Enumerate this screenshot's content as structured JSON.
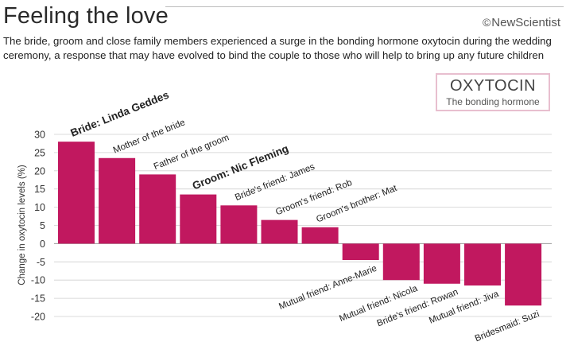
{
  "header": {
    "title": "Feeling the love",
    "brand_symbol": "©",
    "brand_name": "NewScientist",
    "subtitle": "The bride, groom and close family members experienced a surge in the bonding hormone oxytocin during the wedding ceremony, a response that may have evolved to bind the couple to those who will help to bring up any future children"
  },
  "legend": {
    "title": "OXYTOCIN",
    "subtitle": "The bonding hormone",
    "border_color": "#e8bfcf"
  },
  "colors": {
    "bar": "#c1185f",
    "grid": "#cfcfcf"
  },
  "chart_data": {
    "type": "bar",
    "title": "Feeling the love",
    "xlabel": "",
    "ylabel": "Change in oxytocin levels (%)",
    "ylim": [
      -20,
      30
    ],
    "yticks": [
      30,
      25,
      20,
      15,
      10,
      5,
      0,
      -5,
      -10,
      -15,
      -20
    ],
    "ytick_labels": [
      "30",
      "25",
      "20",
      "15",
      "10",
      "5",
      "0",
      "-5",
      "-10",
      "-15",
      "-20"
    ],
    "grid": true,
    "categories": [
      "Bride: Linda Geddes",
      "Mother of the bride",
      "Father of the groom",
      "Groom: Nic Fleming",
      "Bride's friend: James",
      "Groom's friend: Rob",
      "Groom's brother: Mat",
      "Mutual friend: Anne-Marie",
      "Mutual friend: Nicola",
      "Bride's friend: Rowan",
      "Mutual friend: Jiva",
      "Bridesmaid: Suzi"
    ],
    "bold": [
      true,
      false,
      false,
      true,
      false,
      false,
      false,
      false,
      false,
      false,
      false,
      false
    ],
    "values": [
      28,
      23.5,
      19,
      13.5,
      10.5,
      6.5,
      4.5,
      -4.5,
      -10,
      -11,
      -11.5,
      -17
    ]
  }
}
